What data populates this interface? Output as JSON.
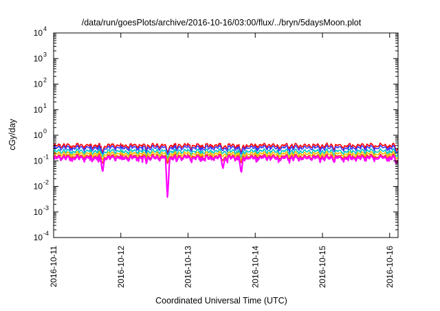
{
  "chart_data": {
    "type": "line",
    "title": "/data/run/goesPlots/archive/2016-10-16/03:00/flux/../bryn/5daysMoon.plot",
    "xlabel": "Coordinated Universal Time (UTC)",
    "ylabel": "cGy/day",
    "yscale": "log",
    "ylim": [
      0.0001,
      10000
    ],
    "xlim": [
      "2016-10-11T00:00",
      "2016-10-16T03:00"
    ],
    "grid": false,
    "legend": "none",
    "x_ticks": [
      "2016-10-11",
      "2016-10-12",
      "2016-10-13",
      "2016-10-14",
      "2016-10-15",
      "2016-10-16"
    ],
    "y_ticks": [
      {
        "value": 0.0001,
        "base": "10",
        "exp": "-4"
      },
      {
        "value": 0.001,
        "base": "10",
        "exp": "-3"
      },
      {
        "value": 0.01,
        "base": "10",
        "exp": "-2"
      },
      {
        "value": 0.1,
        "base": "10",
        "exp": "-1"
      },
      {
        "value": 1,
        "base": "10",
        "exp": "0"
      },
      {
        "value": 10,
        "base": "10",
        "exp": "1"
      },
      {
        "value": 100,
        "base": "10",
        "exp": "2"
      },
      {
        "value": 1000,
        "base": "10",
        "exp": "3"
      },
      {
        "value": 10000,
        "base": "10",
        "exp": "4"
      }
    ],
    "series": [
      {
        "color": "#ff0000",
        "level": 0.4,
        "dip": 0.55
      },
      {
        "color": "#3a3aff",
        "level": 0.33,
        "dip": 0.55
      },
      {
        "color": "#00c8c8",
        "level": 0.24,
        "dip": 0.55
      },
      {
        "color": "#f0c000",
        "level": 0.19,
        "dip": 0.6
      },
      {
        "color": "#ff3030",
        "level": 0.15,
        "dip": 0.6
      },
      {
        "color": "#ff00ff",
        "level": 0.13,
        "dip": 0.6
      }
    ],
    "notable_dips": [
      {
        "x": "2016-10-11T17:30",
        "min": 0.035
      },
      {
        "x": "2016-10-12T16:40",
        "min": 0.003
      },
      {
        "x": "2016-10-13T12:30",
        "min": 0.05
      },
      {
        "x": "2016-10-13T19:00",
        "min": 0.03
      }
    ]
  }
}
